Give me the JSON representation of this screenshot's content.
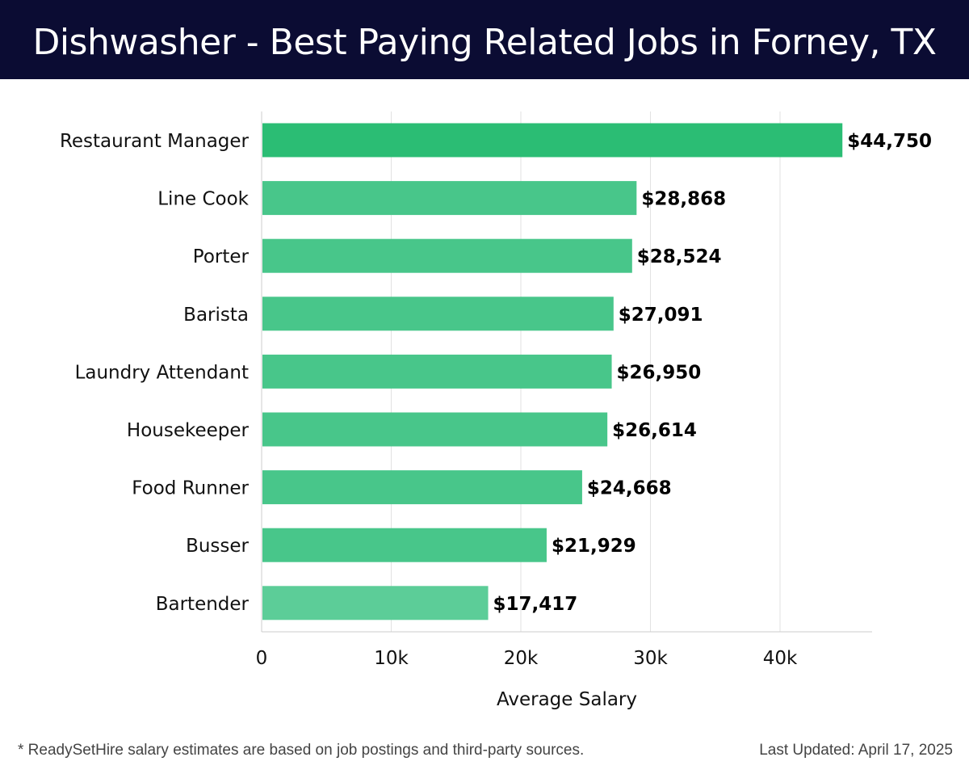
{
  "header": {
    "title": "Dishwasher - Best Paying Related Jobs in Forney, TX"
  },
  "footer": {
    "note": "* ReadySetHire salary estimates are based on job postings and third-party sources.",
    "updated": "Last Updated: April 17, 2025"
  },
  "colors": {
    "header_bg": "#0b0c33",
    "bar_top": "#2bbd74",
    "bar": "#48c68a",
    "bar_light": "#5ccd98"
  },
  "chart_data": {
    "type": "bar",
    "orientation": "horizontal",
    "title": "Dishwasher - Best Paying Related Jobs in Forney, TX",
    "xlabel": "Average Salary",
    "ylabel": "",
    "categories": [
      "Restaurant Manager",
      "Line Cook",
      "Porter",
      "Barista",
      "Laundry Attendant",
      "Housekeeper",
      "Food Runner",
      "Busser",
      "Bartender"
    ],
    "values": [
      44750,
      28868,
      28524,
      27091,
      26950,
      26614,
      24668,
      21929,
      17417
    ],
    "value_labels": [
      "$44,750",
      "$28,868",
      "$28,524",
      "$27,091",
      "$26,950",
      "$26,614",
      "$24,668",
      "$21,929",
      "$17,417"
    ],
    "xticks": [
      0,
      10000,
      20000,
      30000,
      40000
    ],
    "xtick_labels": [
      "0",
      "10k",
      "20k",
      "30k",
      "40k"
    ],
    "xlim": [
      0,
      47000
    ],
    "grid": true,
    "legend": "none"
  }
}
